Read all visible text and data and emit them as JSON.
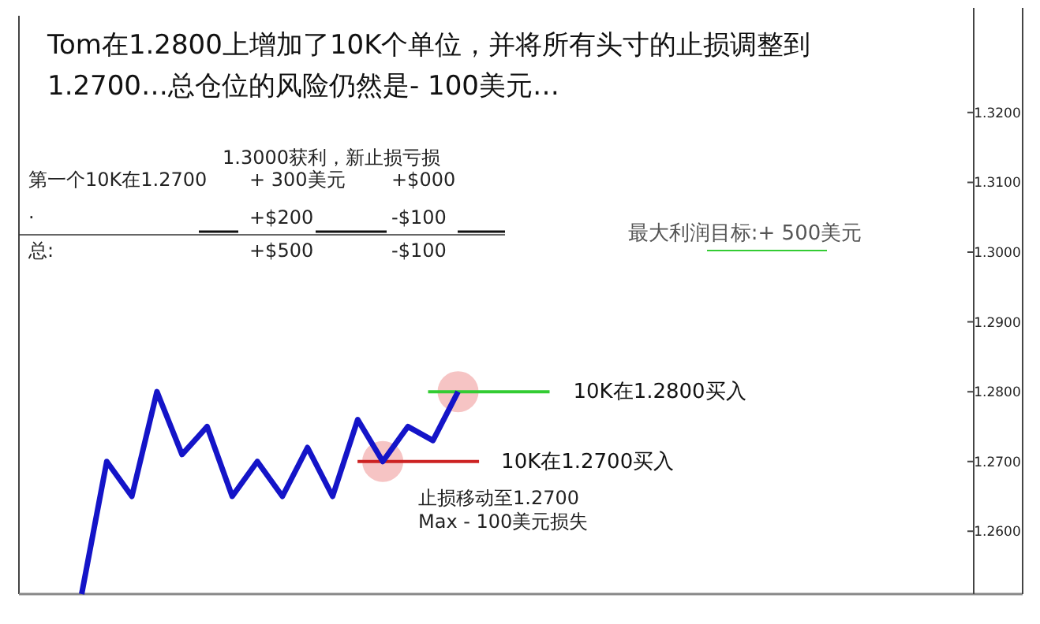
{
  "chart_data": {
    "type": "line",
    "title": "Tom在1.2800上增加了10K个单位，并将所有头寸的止损调整到 1.2700…总仓位的风险仍然是- 100美元…",
    "categories": [
      null,
      null,
      null,
      null,
      null,
      null,
      null,
      null,
      null,
      null,
      null,
      null,
      null,
      null,
      null,
      null,
      null,
      null,
      null,
      null,
      null,
      null,
      null,
      null,
      null,
      null,
      null,
      null,
      null,
      null,
      null,
      null,
      null,
      null,
      null,
      null,
      null,
      null,
      null,
      null
    ],
    "series": [
      {
        "color": "#1414c8",
        "values": [
          null,
          null,
          1.251,
          1.27,
          1.265,
          1.28,
          1.271,
          1.275,
          1.265,
          1.27,
          1.265,
          1.272,
          1.265,
          1.276,
          1.27,
          1.275,
          1.273,
          1.28,
          null,
          null,
          null,
          null,
          null,
          null,
          null,
          null,
          null,
          null,
          null,
          null,
          null,
          null,
          null,
          null,
          null,
          null,
          null,
          null,
          null,
          null
        ]
      }
    ],
    "ylim": [
      1.251,
      1.335
    ],
    "yticks": [
      {
        "value": 1.26,
        "label": "1.2600"
      },
      {
        "value": 1.27,
        "label": "1.2700"
      },
      {
        "value": 1.28,
        "label": "1.2800"
      },
      {
        "value": 1.29,
        "label": "1.2900"
      },
      {
        "value": 1.3,
        "label": "1.3000"
      },
      {
        "value": 1.31,
        "label": "1.3100"
      },
      {
        "value": 1.32,
        "label": "1.3200"
      }
    ],
    "ref_lines": [
      {
        "axis": "y",
        "value": 1.28,
        "label": "10K在1.2800买入",
        "color": "#33cc33"
      },
      {
        "axis": "y",
        "value": 1.27,
        "label": "10K在1.2700买入",
        "color": "#cc2222"
      }
    ],
    "annotations": [
      "1.3000获利，新止损亏损",
      "第一个10K在1.2700",
      "+ 300美元",
      "+$000",
      "·",
      "+$200",
      "-$100",
      "总:",
      "+$500",
      "-$100",
      "最大利润目标:+ 500美元",
      "止损移动至1.2700",
      "Max - 100美元损失"
    ],
    "marker": "none",
    "line_style": "solid"
  }
}
